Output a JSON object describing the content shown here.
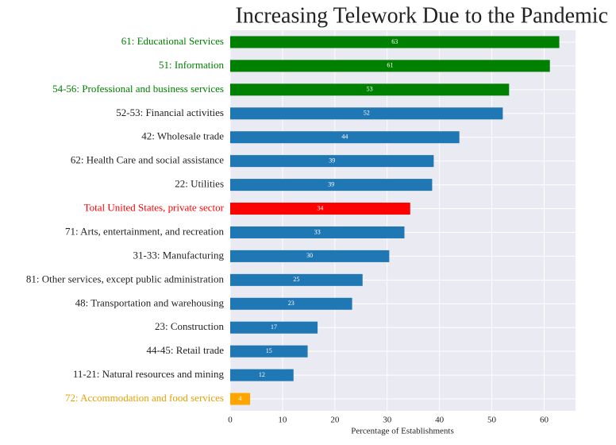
{
  "chart_data": {
    "type": "barh",
    "title": "Increasing Telework Due to the Pandemic",
    "xlabel": "Percentage of Establishments",
    "categories": [
      "61: Educational Services",
      "51: Information",
      "54-56: Professional and business services",
      "52-53: Financial activities",
      "42: Wholesale trade",
      "62: Health Care and social assistance",
      "22: Utilities",
      "Total United States, private sector",
      "71: Arts, entertainment, and recreation",
      "31-33: Manufacturing",
      "81: Other services, except public administration",
      "48: Transportation and warehousing",
      "23: Construction",
      "44-45: Retail trade",
      "11-21: Natural resources and mining",
      "72: Accommodation and food services"
    ],
    "values": [
      62.9,
      61.1,
      53.3,
      52.1,
      43.8,
      38.9,
      38.6,
      34.4,
      33.3,
      30.4,
      25.3,
      23.3,
      16.7,
      14.8,
      12.1,
      3.8
    ],
    "value_labels": [
      "63",
      "61",
      "53",
      "52",
      "44",
      "39",
      "39",
      "34",
      "33",
      "30",
      "25",
      "23",
      "17",
      "15",
      "12",
      "4"
    ],
    "colors": [
      "#008000",
      "#008000",
      "#008000",
      "#1f77b4",
      "#1f77b4",
      "#1f77b4",
      "#1f77b4",
      "#ff0000",
      "#1f77b4",
      "#1f77b4",
      "#1f77b4",
      "#1f77b4",
      "#1f77b4",
      "#1f77b4",
      "#1f77b4",
      "#ffa500"
    ],
    "label_colors": [
      "#008000",
      "#008000",
      "#008000",
      "#222222",
      "#222222",
      "#222222",
      "#222222",
      "#ff0000",
      "#222222",
      "#222222",
      "#222222",
      "#222222",
      "#222222",
      "#222222",
      "#222222",
      "#e8a000"
    ],
    "xlim": [
      0,
      66
    ],
    "xticks": [
      0,
      10,
      20,
      30,
      40,
      50,
      60
    ],
    "grid": true
  }
}
